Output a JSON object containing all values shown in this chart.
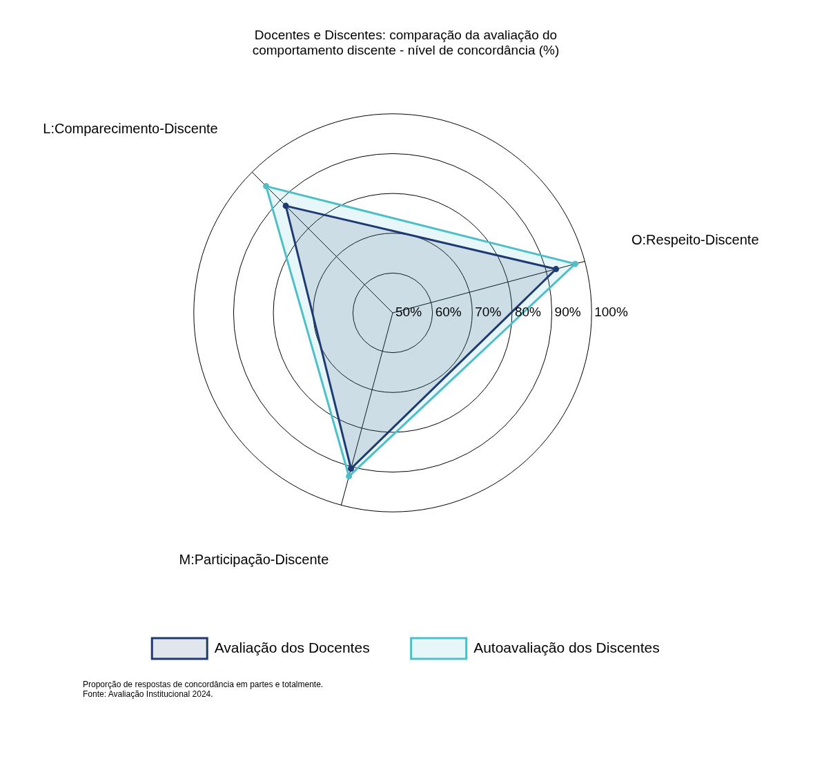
{
  "chart_data": {
    "type": "radar",
    "title": "Docentes e Discentes: comparação da avaliação do comportamento discente - nível de concordância (%)",
    "categories": [
      "L:Comparecimento-Discente",
      "O:Respeito-Discente",
      "M:Participação-Discente"
    ],
    "series": [
      {
        "name": "Avaliação dos Docentes",
        "color": "#1f3a73",
        "values": [
          88,
          92.5,
          90.5
        ]
      },
      {
        "name": "Autoavaliação dos Discentes",
        "color": "#4dbfc8",
        "values": [
          95,
          97.5,
          92.5
        ]
      }
    ],
    "ylim": [
      50,
      100
    ],
    "yticks": [
      {
        "value": 50,
        "label": "50%"
      },
      {
        "value": 60,
        "label": "60%"
      },
      {
        "value": 70,
        "label": "70%"
      },
      {
        "value": 80,
        "label": "80%"
      },
      {
        "value": 90,
        "label": "90%"
      },
      {
        "value": 100,
        "label": "100%"
      }
    ],
    "grid": true,
    "legend": "bottom",
    "marker": "circle",
    "annotations": [
      "Proporção de respostas de concordância em partes e totalmente.",
      "Fonte: Avaliação Institucional 2024."
    ]
  }
}
